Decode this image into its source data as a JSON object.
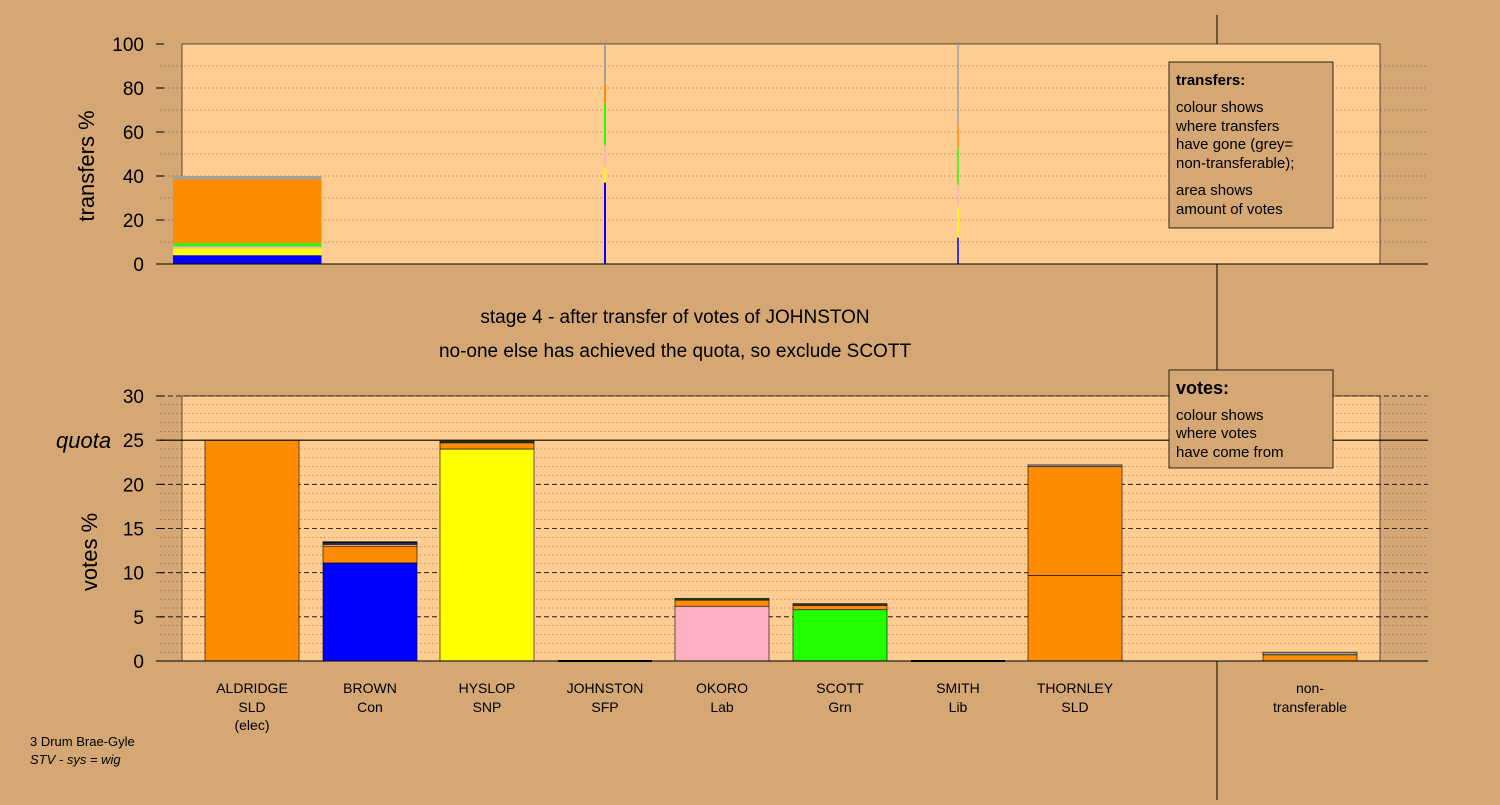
{
  "colors": {
    "background": "#d4a774",
    "plot_bg": "#ffcc92",
    "orange": "#ff8c00",
    "blue": "#0000ff",
    "yellow": "#ffff00",
    "pink": "#ffb0c0",
    "green": "#22ff00",
    "grey": "#a0a0a0"
  },
  "stage": {
    "line1": "stage 4 - after transfer of votes of JOHNSTON",
    "line2": "no-one else has achieved the quota, so exclude SCOTT"
  },
  "footer": {
    "constituency": "3 Drum Brae-Gyle",
    "system": "STV - sys = wig"
  },
  "transfers_legend": {
    "title": "transfers:",
    "line1": "colour shows",
    "line2": "where transfers",
    "line3": "have gone (grey=",
    "line4": "non-transferable);",
    "line5": "area shows",
    "line6": "amount of votes"
  },
  "votes_legend": {
    "title": "votes:",
    "line1": "colour shows",
    "line2": "where votes",
    "line3": "have come from"
  },
  "candidates": [
    {
      "name": "ALDRIDGE",
      "party": "SLD",
      "note": "(elec)"
    },
    {
      "name": "BROWN",
      "party": "Con",
      "note": ""
    },
    {
      "name": "HYSLOP",
      "party": "SNP",
      "note": ""
    },
    {
      "name": "JOHNSTON",
      "party": "SFP",
      "note": ""
    },
    {
      "name": "OKORO",
      "party": "Lab",
      "note": ""
    },
    {
      "name": "SCOTT",
      "party": "Grn",
      "note": ""
    },
    {
      "name": "SMITH",
      "party": "Lib",
      "note": ""
    },
    {
      "name": "THORNLEY",
      "party": "SLD",
      "note": ""
    }
  ],
  "nontransferable": {
    "line1": "non-",
    "line2": "transferable"
  },
  "chart_data": [
    {
      "type": "bar",
      "ylabel": "transfers %",
      "ylim": [
        0,
        100
      ],
      "yticks": [
        0,
        20,
        40,
        60,
        80,
        100
      ],
      "bars": [
        {
          "source": "ALDRIDGE",
          "width_share": 0.45,
          "segments": [
            {
              "color": "blue",
              "value": 4
            },
            {
              "color": "yellow",
              "value": 3
            },
            {
              "color": "pink",
              "value": 1
            },
            {
              "color": "green",
              "value": 1.5
            },
            {
              "color": "orange",
              "value": 29
            },
            {
              "color": "grey",
              "value": 1.5
            }
          ]
        },
        {
          "source": "JOHNSTON",
          "width_share": 0.006,
          "segments": [
            {
              "color": "blue",
              "value": 37
            },
            {
              "color": "yellow",
              "value": 7
            },
            {
              "color": "pink",
              "value": 10
            },
            {
              "color": "green",
              "value": 19
            },
            {
              "color": "orange",
              "value": 9
            },
            {
              "color": "grey",
              "value": 18
            }
          ]
        },
        {
          "source": "SMITH",
          "width_share": 0.003,
          "segments": [
            {
              "color": "blue",
              "value": 12
            },
            {
              "color": "yellow",
              "value": 14
            },
            {
              "color": "pink",
              "value": 10
            },
            {
              "color": "green",
              "value": 17
            },
            {
              "color": "orange",
              "value": 10
            },
            {
              "color": "grey",
              "value": 37
            }
          ]
        }
      ]
    },
    {
      "type": "bar",
      "ylabel": "votes %",
      "ylim": [
        0,
        30
      ],
      "yticks": [
        0,
        5,
        10,
        15,
        20,
        25,
        30
      ],
      "quota": 25,
      "quota_label": "quota",
      "bars": [
        {
          "candidate": "ALDRIDGE",
          "segments": [
            {
              "color": "orange",
              "value": 25
            }
          ]
        },
        {
          "candidate": "BROWN",
          "segments": [
            {
              "color": "blue",
              "value": 11.1
            },
            {
              "color": "orange",
              "value": 1.9
            },
            {
              "color": "pink",
              "value": 0.2
            },
            {
              "color": "green",
              "value": 0.1
            },
            {
              "color": "grey",
              "value": 0.1
            },
            {
              "color": "blue",
              "value": 0.1
            }
          ]
        },
        {
          "candidate": "HYSLOP",
          "segments": [
            {
              "color": "yellow",
              "value": 24
            },
            {
              "color": "orange",
              "value": 0.7
            },
            {
              "color": "pink",
              "value": 0.1
            },
            {
              "color": "green",
              "value": 0.1
            }
          ]
        },
        {
          "candidate": "JOHNSTON",
          "segments": []
        },
        {
          "candidate": "OKORO",
          "segments": [
            {
              "color": "pink",
              "value": 6.2
            },
            {
              "color": "orange",
              "value": 0.7
            },
            {
              "color": "green",
              "value": 0.1
            },
            {
              "color": "grey",
              "value": 0.1
            }
          ]
        },
        {
          "candidate": "SCOTT",
          "segments": [
            {
              "color": "green",
              "value": 5.8
            },
            {
              "color": "orange",
              "value": 0.5
            },
            {
              "color": "pink",
              "value": 0.1
            },
            {
              "color": "grey",
              "value": 0.1
            }
          ]
        },
        {
          "candidate": "SMITH",
          "segments": []
        },
        {
          "candidate": "THORNLEY",
          "segments": [
            {
              "color": "orange",
              "value": 9.7
            },
            {
              "color": "orange",
              "value": 12.3
            },
            {
              "color": "grey",
              "value": 0.2
            }
          ]
        },
        {
          "candidate": "non-transferable",
          "segments": [
            {
              "color": "orange",
              "value": 0.7
            },
            {
              "color": "grey",
              "value": 0.3
            }
          ]
        }
      ]
    }
  ]
}
